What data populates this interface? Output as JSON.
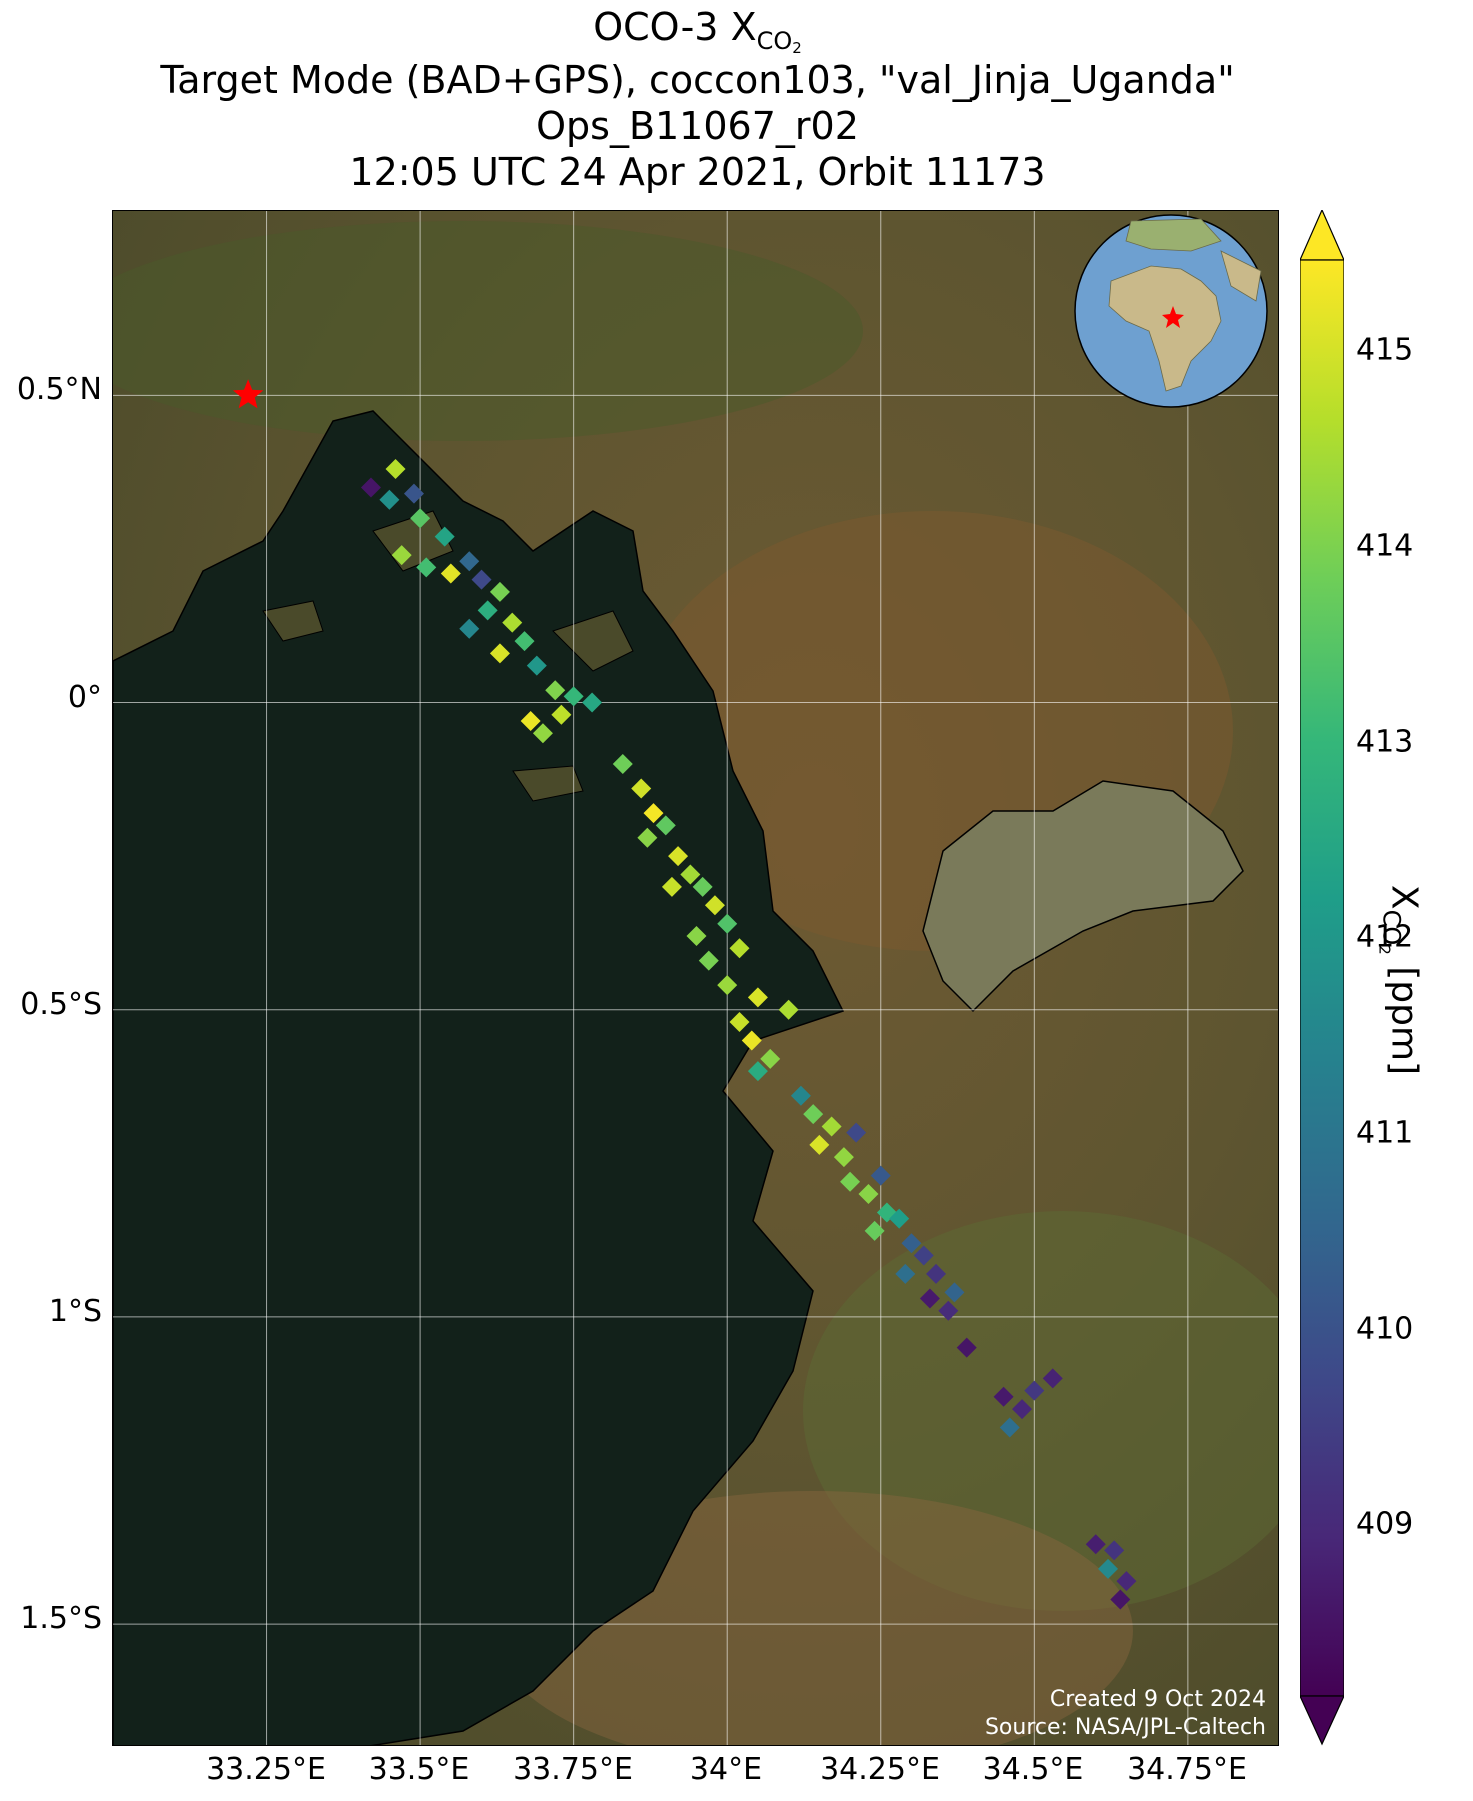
{
  "title": {
    "line1_prefix": "OCO-3 X",
    "line1_sub": "CO",
    "line1_sub2": "2",
    "line2": "Target Mode (BAD+GPS), coccon103, \"val_Jinja_Uganda\"",
    "line3": "Ops_B11067_r02",
    "line4": "12:05 UTC 24 Apr 2021, Orbit 11173"
  },
  "axes": {
    "lat_ticks": [
      "0.5°N",
      "0°",
      "0.5°S",
      "1°S",
      "1.5°S"
    ],
    "lon_ticks": [
      "33.25°E",
      "33.5°E",
      "33.75°E",
      "34°E",
      "34.25°E",
      "34.5°E",
      "34.75°E"
    ]
  },
  "colorbar": {
    "label_prefix": "X",
    "label_sub": "CO",
    "label_sub2": "2",
    "label_suffix": " [ppm]",
    "ticks": [
      "415",
      "414",
      "413",
      "412",
      "411",
      "410",
      "409"
    ],
    "range": [
      408.2,
      415.4
    ],
    "colormap": [
      "#440154",
      "#482878",
      "#3e4989",
      "#31688e",
      "#26828e",
      "#1f9e89",
      "#35b779",
      "#6ece58",
      "#b5de2b",
      "#fde725"
    ],
    "extend": "both"
  },
  "annotations": {
    "created": "Created 9 Oct 2024",
    "source": "Source: NASA/JPL-Caltech"
  },
  "target_marker": {
    "lon": 33.22,
    "lat": 0.5,
    "symbol": "star",
    "color": "#ff0000"
  },
  "inset": {
    "type": "globe",
    "marker": "star",
    "marker_color": "#ff0000"
  },
  "chart_data": {
    "type": "scatter",
    "map_extent": {
      "lon": [
        33.0,
        34.9
      ],
      "lat": [
        -1.7,
        0.8
      ]
    },
    "value_unit": "ppm",
    "soundings": [
      [
        33.42,
        0.35,
        408.6
      ],
      [
        33.46,
        0.38,
        414.6
      ],
      [
        33.49,
        0.34,
        410.1
      ],
      [
        33.45,
        0.33,
        411.8
      ],
      [
        33.5,
        0.3,
        413.5
      ],
      [
        33.54,
        0.27,
        412.4
      ],
      [
        33.47,
        0.24,
        414.3
      ],
      [
        33.51,
        0.22,
        413.2
      ],
      [
        33.55,
        0.21,
        415.1
      ],
      [
        33.58,
        0.23,
        410.6
      ],
      [
        33.6,
        0.2,
        409.8
      ],
      [
        33.63,
        0.18,
        413.9
      ],
      [
        33.61,
        0.15,
        412.7
      ],
      [
        33.65,
        0.13,
        414.5
      ],
      [
        33.67,
        0.1,
        413.2
      ],
      [
        33.63,
        0.08,
        415.0
      ],
      [
        33.69,
        0.06,
        412.0
      ],
      [
        33.58,
        0.12,
        411.5
      ],
      [
        33.72,
        0.02,
        414.0
      ],
      [
        33.75,
        0.01,
        413.0
      ],
      [
        33.68,
        -0.03,
        415.2
      ],
      [
        33.73,
        -0.02,
        414.7
      ],
      [
        33.78,
        0.0,
        412.5
      ],
      [
        33.7,
        -0.05,
        414.2
      ],
      [
        33.83,
        -0.1,
        413.8
      ],
      [
        33.86,
        -0.14,
        414.9
      ],
      [
        33.88,
        -0.18,
        415.3
      ],
      [
        33.9,
        -0.2,
        413.6
      ],
      [
        33.87,
        -0.22,
        414.1
      ],
      [
        33.92,
        -0.25,
        415.0
      ],
      [
        33.94,
        -0.28,
        414.4
      ],
      [
        33.96,
        -0.3,
        413.7
      ],
      [
        33.91,
        -0.3,
        414.8
      ],
      [
        33.98,
        -0.33,
        414.9
      ],
      [
        34.0,
        -0.36,
        413.4
      ],
      [
        33.95,
        -0.38,
        414.1
      ],
      [
        34.02,
        -0.4,
        414.6
      ],
      [
        33.97,
        -0.42,
        413.9
      ],
      [
        34.0,
        -0.46,
        414.3
      ],
      [
        34.05,
        -0.48,
        415.0
      ],
      [
        34.02,
        -0.52,
        414.8
      ],
      [
        34.04,
        -0.55,
        415.2
      ],
      [
        34.07,
        -0.58,
        414.1
      ],
      [
        34.05,
        -0.6,
        412.6
      ],
      [
        34.1,
        -0.5,
        414.5
      ],
      [
        34.12,
        -0.64,
        411.5
      ],
      [
        34.14,
        -0.67,
        413.8
      ],
      [
        34.17,
        -0.69,
        414.4
      ],
      [
        34.15,
        -0.72,
        415.0
      ],
      [
        34.19,
        -0.74,
        414.2
      ],
      [
        34.21,
        -0.7,
        409.8
      ],
      [
        34.2,
        -0.78,
        413.9
      ],
      [
        34.23,
        -0.8,
        414.1
      ],
      [
        34.25,
        -0.77,
        410.2
      ],
      [
        34.26,
        -0.83,
        412.9
      ],
      [
        34.24,
        -0.86,
        413.7
      ],
      [
        34.28,
        -0.84,
        412.2
      ],
      [
        34.3,
        -0.88,
        410.4
      ],
      [
        34.32,
        -0.9,
        409.6
      ],
      [
        34.29,
        -0.93,
        410.8
      ],
      [
        34.34,
        -0.93,
        409.3
      ],
      [
        34.33,
        -0.97,
        408.7
      ],
      [
        34.37,
        -0.96,
        410.5
      ],
      [
        34.36,
        -0.99,
        409.1
      ],
      [
        34.39,
        -1.05,
        408.6
      ],
      [
        34.45,
        -1.13,
        408.7
      ],
      [
        34.48,
        -1.15,
        409.0
      ],
      [
        34.46,
        -1.18,
        410.8
      ],
      [
        34.5,
        -1.12,
        409.4
      ],
      [
        34.53,
        -1.1,
        408.9
      ],
      [
        34.6,
        -1.37,
        408.8
      ],
      [
        34.63,
        -1.38,
        409.3
      ],
      [
        34.62,
        -1.41,
        411.6
      ],
      [
        34.65,
        -1.43,
        409.0
      ],
      [
        34.64,
        -1.46,
        408.6
      ]
    ]
  }
}
